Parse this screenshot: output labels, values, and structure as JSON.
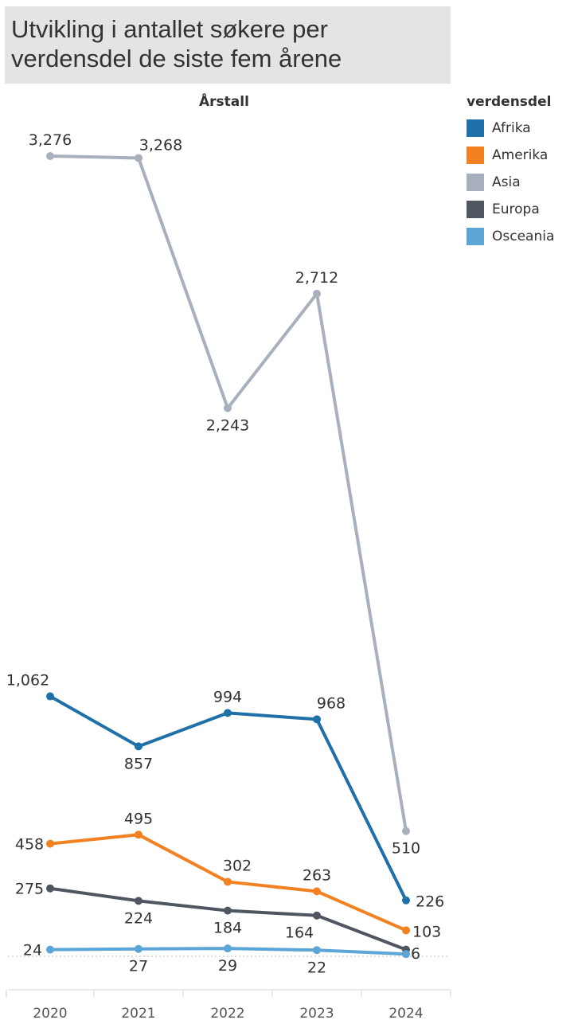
{
  "header": {
    "title": "Utvikling i antallet søkere per\nverdensdel de siste fem årene"
  },
  "chart_data": {
    "type": "line",
    "title": "Utvikling i antallet søkere per verdensdel de siste fem årene",
    "xlabel": "Årstall",
    "ylabel": "",
    "x": [
      "2020",
      "2021",
      "2022",
      "2023",
      "2024"
    ],
    "ylim": [
      0,
      3276
    ],
    "grid": false,
    "legend_title": "verdensdel",
    "legend_position": "right",
    "series": [
      {
        "name": "Afrika",
        "color": "#1f6fa8",
        "values": [
          1062,
          857,
          994,
          968,
          226
        ],
        "labels": [
          "1,062",
          "857",
          "994",
          "968",
          "226"
        ]
      },
      {
        "name": "Amerika",
        "color": "#f28121",
        "values": [
          458,
          495,
          302,
          263,
          103
        ],
        "labels": [
          "458",
          "495",
          "302",
          "263",
          "103"
        ]
      },
      {
        "name": "Asia",
        "color": "#a9b0bd",
        "values": [
          3276,
          3268,
          2243,
          2712,
          510
        ],
        "labels": [
          "3,276",
          "3,268",
          "2,243",
          "2,712",
          "510"
        ]
      },
      {
        "name": "Europa",
        "color": "#4f5561",
        "values": [
          275,
          224,
          184,
          164,
          24
        ],
        "labels": [
          "275",
          "224",
          "184",
          "164",
          ""
        ]
      },
      {
        "name": "Osceania",
        "color": "#5ba6d6",
        "values": [
          24,
          27,
          29,
          22,
          6
        ],
        "labels": [
          "24",
          "27",
          "29",
          "22",
          "6"
        ]
      }
    ]
  }
}
